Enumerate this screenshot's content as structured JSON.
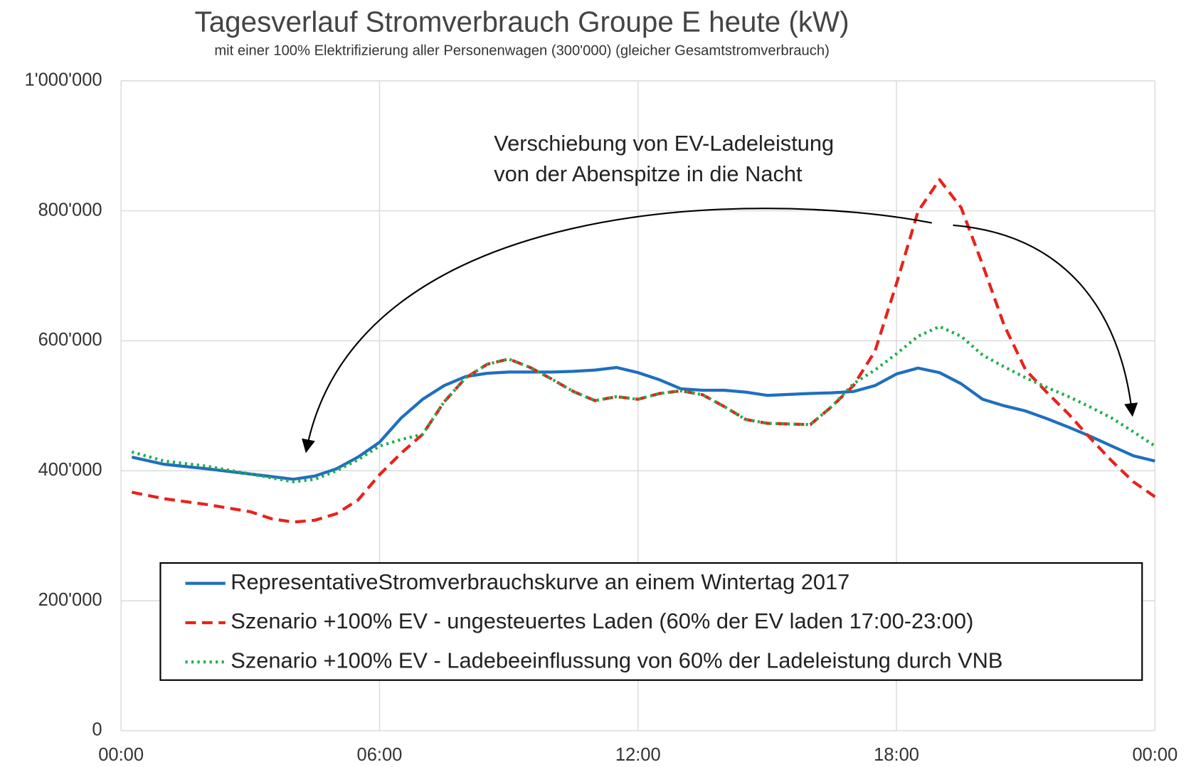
{
  "chart_data": {
    "type": "line",
    "title": "Tagesverlauf Stromverbrauch Groupe E heute (kW)",
    "subtitle": "mit einer 100% Elektrifizierung aller Personenwagen (300'000) (gleicher Gesamtstromverbrauch)",
    "annotation": [
      "Verschiebung von EV-Ladeleistung",
      "von der Abenspitze in die Nacht"
    ],
    "x": [
      0.25,
      1,
      2,
      3,
      3.5,
      4,
      4.5,
      5,
      5.5,
      6,
      6.5,
      7,
      7.5,
      8,
      8.5,
      9,
      9.5,
      10,
      10.5,
      11,
      11.5,
      12,
      12.5,
      13,
      13.5,
      14,
      14.5,
      15,
      16,
      16.5,
      17,
      17.5,
      18,
      18.5,
      19,
      19.5,
      20,
      20.5,
      21,
      21.5,
      22,
      22.5,
      23,
      23.5,
      24
    ],
    "series": [
      {
        "name": "RepresentativeStromverbrauchskurve an einem Wintertag 2017",
        "color": "#1f6fbf",
        "line_style": "solid",
        "values": [
          421000,
          410000,
          403000,
          395000,
          391000,
          387000,
          392000,
          403000,
          421000,
          444000,
          481000,
          510000,
          531000,
          545000,
          550000,
          552000,
          552000,
          552000,
          553000,
          555000,
          559000,
          551000,
          540000,
          526000,
          524000,
          524000,
          521000,
          516000,
          519000,
          520000,
          522000,
          531000,
          549000,
          558000,
          551000,
          534000,
          510000,
          500000,
          492000,
          480000,
          467000,
          453000,
          438000,
          423000,
          415000
        ]
      },
      {
        "name": "Szenario +100% EV - ungesteuertes Laden (60% der EV laden 17:00-23:00)",
        "color": "#e8221c",
        "line_style": "dashed",
        "values": [
          367000,
          357000,
          348000,
          337000,
          326000,
          321000,
          324000,
          334000,
          355000,
          394000,
          427000,
          456000,
          506000,
          543000,
          564000,
          572000,
          559000,
          541000,
          522000,
          508000,
          514000,
          510000,
          519000,
          523000,
          517000,
          499000,
          479000,
          473000,
          471000,
          499000,
          531000,
          584000,
          688000,
          799000,
          848000,
          805000,
          717000,
          624000,
          555000,
          520000,
          487000,
          450000,
          415000,
          383000,
          360000
        ]
      },
      {
        "name": "Szenario +100% EV - Ladebeeinflussung von 60% der Ladeleistung durch VNB",
        "color": "#1fae4a",
        "line_style": "dotted",
        "values": [
          429000,
          415000,
          407000,
          395000,
          389000,
          383000,
          387000,
          400000,
          417000,
          438000,
          448000,
          456000,
          506000,
          543000,
          564000,
          572000,
          559000,
          541000,
          522000,
          508000,
          514000,
          510000,
          519000,
          523000,
          517000,
          499000,
          479000,
          473000,
          471000,
          499000,
          534000,
          555000,
          580000,
          607000,
          622000,
          607000,
          578000,
          560000,
          543000,
          528000,
          514000,
          498000,
          481000,
          460000,
          438000
        ]
      }
    ],
    "xlim": [
      0,
      24
    ],
    "xticks": [
      {
        "value": 0,
        "label": "00:00"
      },
      {
        "value": 6,
        "label": "06:00"
      },
      {
        "value": 12,
        "label": "12:00"
      },
      {
        "value": 18,
        "label": "18:00"
      },
      {
        "value": 24,
        "label": "00:00"
      }
    ],
    "ylim": [
      0,
      1000000
    ],
    "yticks": [
      0,
      {
        "value": 200000,
        "label": "200'000"
      },
      {
        "value": 400000,
        "label": "400'000"
      },
      {
        "value": 600000,
        "label": "600'000"
      },
      {
        "value": 800000,
        "label": "800'000"
      },
      {
        "value": 1000000,
        "label": "1'000'000"
      }
    ],
    "grid": true,
    "legend": "bottom"
  }
}
